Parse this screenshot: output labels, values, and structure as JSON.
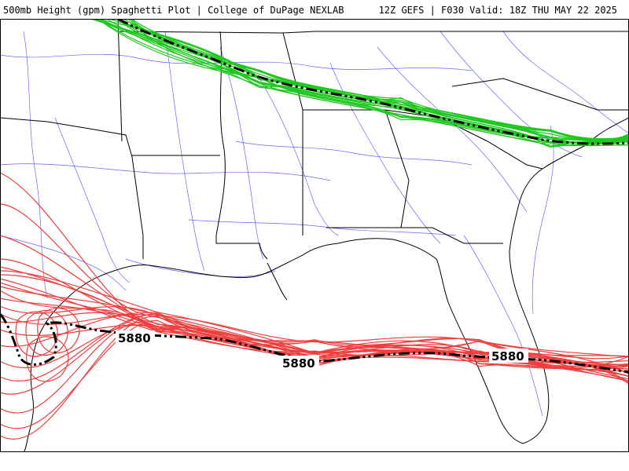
{
  "header": {
    "title": "500mb Height (gpm) Spaghetti Plot | College of DuPage NEXLAB",
    "run_info": "12Z GEFS | F030 Valid: 18Z THU MAY 22 2025"
  },
  "contours": {
    "red": {
      "color": "#f03c3c",
      "level": "5880"
    },
    "green": {
      "color": "#1ec81e"
    }
  },
  "labels": [
    "5880",
    "5880",
    "5880"
  ]
}
